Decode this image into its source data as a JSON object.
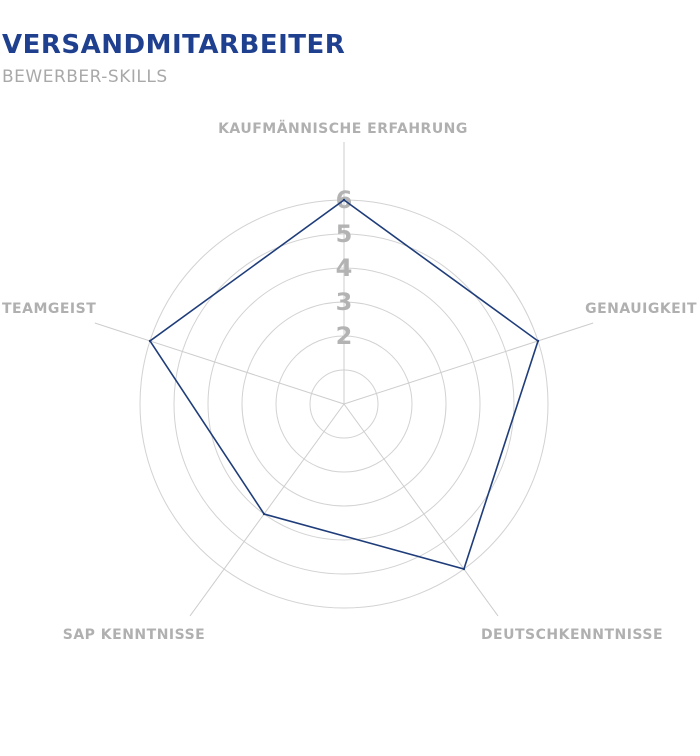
{
  "chart_data": {
    "type": "radar",
    "title": "VERSANDMITARBEITER",
    "subtitle": "BEWERBER-SKILLS",
    "axes": [
      "KAUFMÄNNISCHE ERFAHRUNG",
      "GENAUIGKEIT",
      "DEUTSCHKENNTNISSE",
      "SAP KENNTNISSE",
      "TEAMGEIST"
    ],
    "range": [
      1,
      6
    ],
    "ticks": [
      "2",
      "3",
      "4",
      "5",
      "6"
    ],
    "grid": true,
    "series": [
      {
        "values": [
          6,
          6,
          6,
          4,
          6
        ],
        "color": "#1f3d7a"
      }
    ],
    "colors": {
      "title": "#1f3f8f",
      "grid": "#d2d2d2",
      "labels": "#b0b0b0"
    }
  }
}
